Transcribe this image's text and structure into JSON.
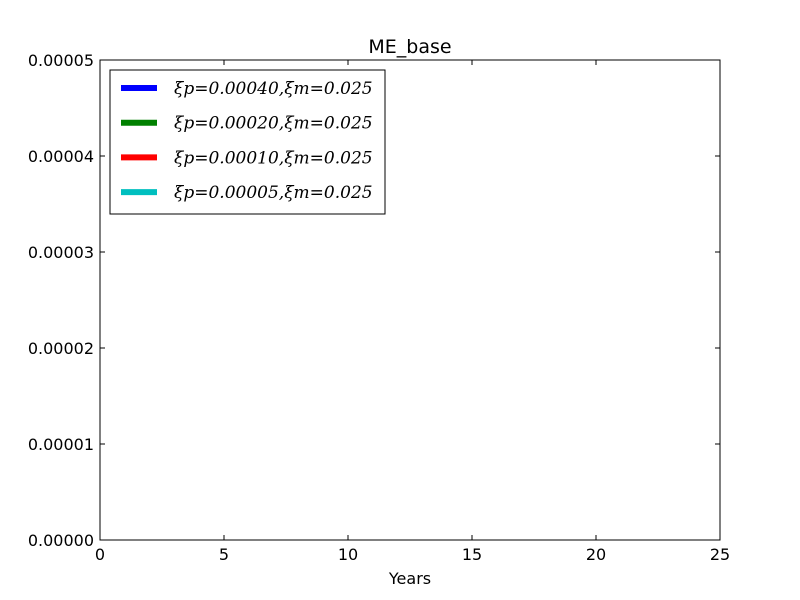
{
  "chart_data": {
    "type": "line",
    "title": "ME_base",
    "xlabel": "Years",
    "ylabel": "",
    "xlim": [
      0,
      25
    ],
    "ylim": [
      0,
      5e-05
    ],
    "x_ticks": [
      0,
      5,
      10,
      15,
      20,
      25
    ],
    "x_tick_labels": [
      "0",
      "5",
      "10",
      "15",
      "20",
      "25"
    ],
    "y_ticks": [
      0,
      1e-05,
      2e-05,
      3e-05,
      4e-05,
      5e-05
    ],
    "y_tick_labels": [
      "0.00000",
      "0.00001",
      "0.00002",
      "0.00003",
      "0.00004",
      "0.00005"
    ],
    "grid": false,
    "legend_position": "upper-left",
    "series": [
      {
        "name": "ξp=0.00040,ξm=0.025",
        "color": "#0000ff",
        "x": [],
        "y": []
      },
      {
        "name": "ξp=0.00020,ξm=0.025",
        "color": "#008000",
        "x": [],
        "y": []
      },
      {
        "name": "ξp=0.00010,ξm=0.025",
        "color": "#ff0000",
        "x": [],
        "y": []
      },
      {
        "name": "ξp=0.00005,ξm=0.025",
        "color": "#00bfbf",
        "x": [],
        "y": []
      }
    ]
  }
}
